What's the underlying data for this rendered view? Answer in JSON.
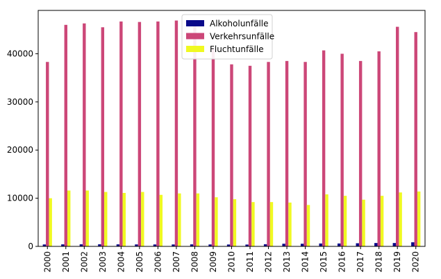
{
  "chart_data": {
    "type": "bar",
    "categories": [
      "2000",
      "2001",
      "2002",
      "2003",
      "2004",
      "2005",
      "2006",
      "2007",
      "2008",
      "2009",
      "2010",
      "2011",
      "2012",
      "2013",
      "2014",
      "2015",
      "2016",
      "2017",
      "2018",
      "2019",
      "2020"
    ],
    "series": [
      {
        "name": "Alkoholunfälle",
        "color": "#0a0a8a",
        "values": [
          400,
          420,
          430,
          440,
          420,
          410,
          400,
          400,
          420,
          400,
          390,
          380,
          450,
          550,
          550,
          600,
          600,
          650,
          700,
          700,
          850
        ]
      },
      {
        "name": "Verkehrsunfälle",
        "color": "#cc4778",
        "values": [
          38300,
          46000,
          46300,
          45500,
          46700,
          46600,
          46700,
          46900,
          46300,
          41000,
          37800,
          37500,
          38300,
          38500,
          38300,
          40700,
          40000,
          38500,
          40500,
          45600,
          44500
        ]
      },
      {
        "name": "Fluchtunfälle",
        "color": "#f0f921",
        "values": [
          10000,
          11600,
          11600,
          11300,
          11100,
          11300,
          10700,
          11000,
          11000,
          10200,
          9800,
          9200,
          9200,
          9100,
          8600,
          10800,
          10500,
          9700,
          10500,
          11200,
          11400
        ]
      }
    ],
    "yticks": [
      0,
      10000,
      20000,
      30000,
      40000
    ],
    "ylim": [
      0,
      49000
    ],
    "legend": "top-center",
    "grid": false
  }
}
